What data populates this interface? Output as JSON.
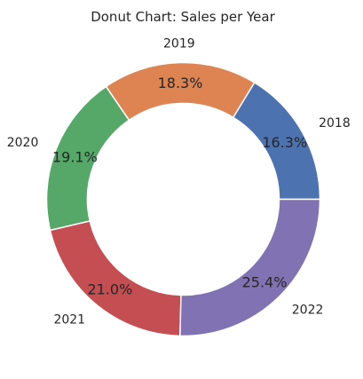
{
  "chart_data": {
    "type": "pie",
    "title": "Donut Chart: Sales per Year",
    "donut": true,
    "start_angle_deg": 0,
    "direction": "counterclockwise",
    "labels": [
      "2018",
      "2019",
      "2020",
      "2021",
      "2022"
    ],
    "values": [
      16.3,
      18.3,
      19.1,
      21.0,
      25.4
    ],
    "percent_labels": [
      "16.3%",
      "18.3%",
      "19.1%",
      "21.0%",
      "25.4%"
    ],
    "colors": [
      "#4c72b0",
      "#dd8452",
      "#55a868",
      "#c44e52",
      "#8172b3"
    ],
    "legend": "none"
  }
}
